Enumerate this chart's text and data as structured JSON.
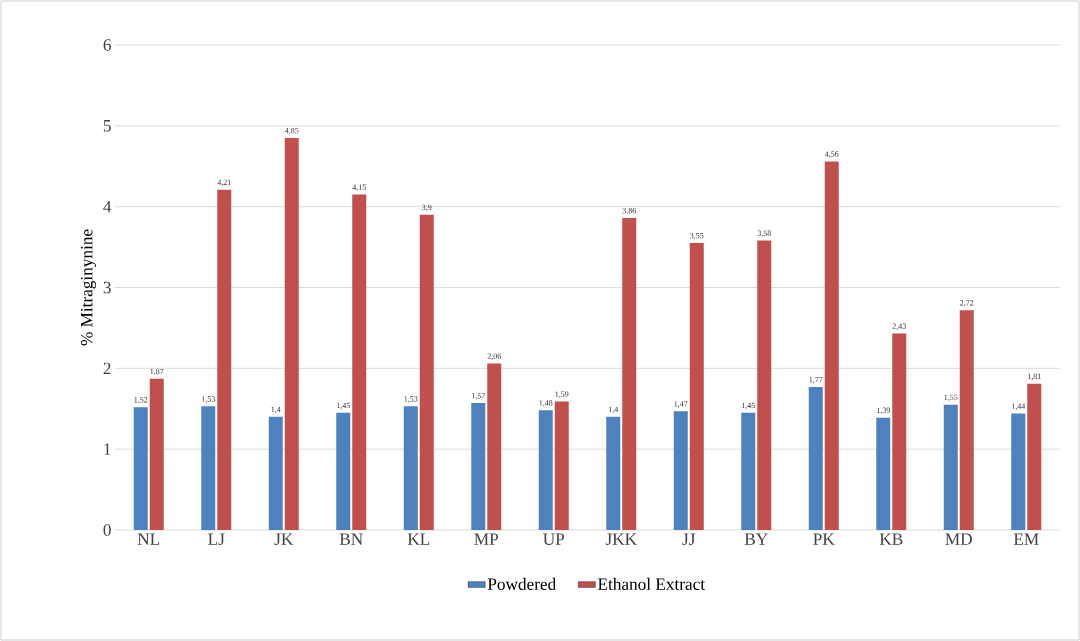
{
  "chart_data": {
    "type": "bar",
    "ylabel": "% Mitraginynine",
    "categories": [
      "NL",
      "LJ",
      "JK",
      "BN",
      "KL",
      "MP",
      "UP",
      "JKK",
      "JJ",
      "BY",
      "PK",
      "KB",
      "MD",
      "EM"
    ],
    "series": [
      {
        "name": "Powdered",
        "color": "#4f81bd",
        "values": [
          1.52,
          1.53,
          1.4,
          1.45,
          1.53,
          1.57,
          1.48,
          1.4,
          1.47,
          1.45,
          1.77,
          1.39,
          1.55,
          1.44
        ],
        "value_labels": [
          "1,52",
          "1,53",
          "1,4",
          "1,45",
          "1,53",
          "1,57",
          "1,48",
          "1,4",
          "1,47",
          "1,45",
          "1,77",
          "1,39",
          "1,55",
          "1,44"
        ]
      },
      {
        "name": "Ethanol Extract",
        "color": "#c0504d",
        "values": [
          1.87,
          4.21,
          4.85,
          4.15,
          3.9,
          2.06,
          1.59,
          3.86,
          3.55,
          3.58,
          4.56,
          2.43,
          2.72,
          1.81
        ],
        "value_labels": [
          "1,87",
          "4,21",
          "4,85",
          "4,15",
          "3,9",
          "2,06",
          "1,59",
          "3,86",
          "3,55",
          "3,58",
          "4,56",
          "2,43",
          "2,72",
          "1,81"
        ]
      }
    ],
    "ylim": [
      0,
      6
    ],
    "yticks": [
      0,
      1,
      2,
      3,
      4,
      5,
      6
    ],
    "grid": "y",
    "legend": "bottom"
  }
}
